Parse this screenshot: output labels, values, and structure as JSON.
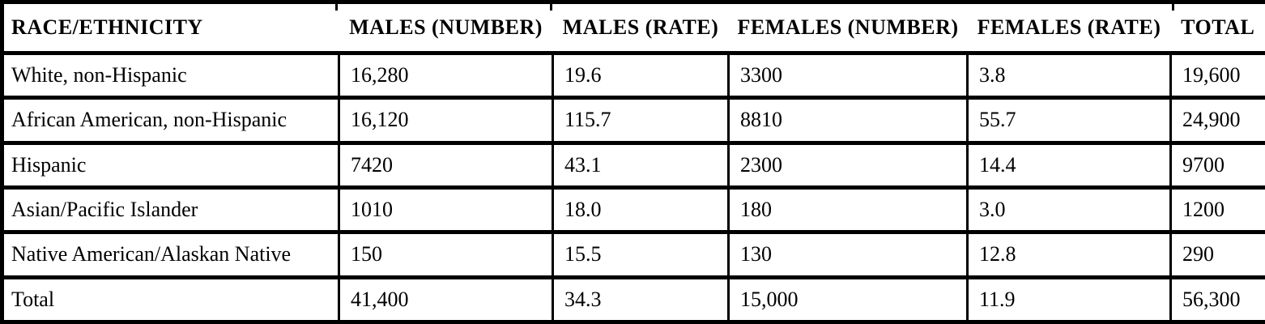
{
  "table": {
    "columns": [
      {
        "key": "race",
        "label": "RACE/ETHNICITY"
      },
      {
        "key": "males_number",
        "label": "MALES (NUMBER)"
      },
      {
        "key": "males_rate",
        "label": "MALES (RATE)"
      },
      {
        "key": "females_number",
        "label": "FEMALES (NUMBER)"
      },
      {
        "key": "females_rate",
        "label": "FEMALES (RATE)"
      },
      {
        "key": "total",
        "label": "TOTAL"
      }
    ],
    "rows": [
      {
        "race": "White, non-Hispanic",
        "males_number": "16,280",
        "males_rate": "19.6",
        "females_number": "3300",
        "females_rate": "3.8",
        "total": "19,600"
      },
      {
        "race": "African American, non-Hispanic",
        "males_number": "16,120",
        "males_rate": "115.7",
        "females_number": "8810",
        "females_rate": "55.7",
        "total": "24,900"
      },
      {
        "race": "Hispanic",
        "males_number": "7420",
        "males_rate": "43.1",
        "females_number": "2300",
        "females_rate": "14.4",
        "total": "9700"
      },
      {
        "race": "Asian/Pacific Islander",
        "males_number": "1010",
        "males_rate": "18.0",
        "females_number": "180",
        "females_rate": "3.0",
        "total": "1200"
      },
      {
        "race": "Native American/Alaskan Native",
        "males_number": "150",
        "males_rate": "15.5",
        "females_number": "130",
        "females_rate": "12.8",
        "total": "290"
      },
      {
        "race": "Total",
        "males_number": "41,400",
        "males_rate": "34.3",
        "females_number": "15,000",
        "females_rate": "11.9",
        "total": "56,300"
      }
    ],
    "colors": {
      "text": "#000000",
      "border": "#000000",
      "background": "#ffffff"
    }
  }
}
